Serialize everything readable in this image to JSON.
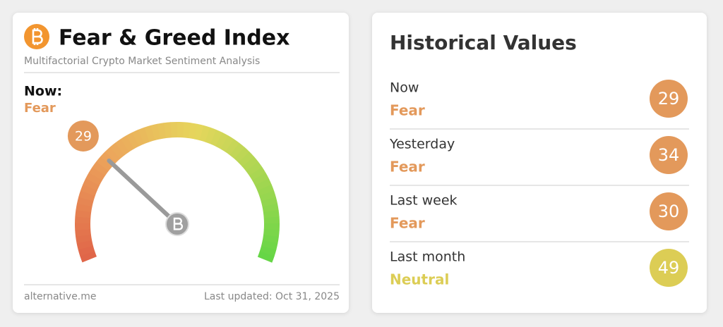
{
  "left_card": {
    "title": "Fear & Greed Index",
    "subtitle": "Multifactorial Crypto Market Sentiment Analysis",
    "now_label": "Now:",
    "now_class": "Fear",
    "now_color": "#e3995b",
    "gauge": {
      "value": 29,
      "range": [
        0,
        100
      ]
    },
    "source": "alternative.me",
    "updated": "Last updated: Oct 31, 2025"
  },
  "right_card": {
    "title": "Historical Values",
    "rows": [
      {
        "period": "Now",
        "class": "Fear",
        "value": 29,
        "color": "#e3995b"
      },
      {
        "period": "Yesterday",
        "class": "Fear",
        "value": 34,
        "color": "#e3995b"
      },
      {
        "period": "Last week",
        "class": "Fear",
        "value": 30,
        "color": "#e3995b"
      },
      {
        "period": "Last month",
        "class": "Neutral",
        "value": 49,
        "color": "#dccd55"
      }
    ]
  }
}
